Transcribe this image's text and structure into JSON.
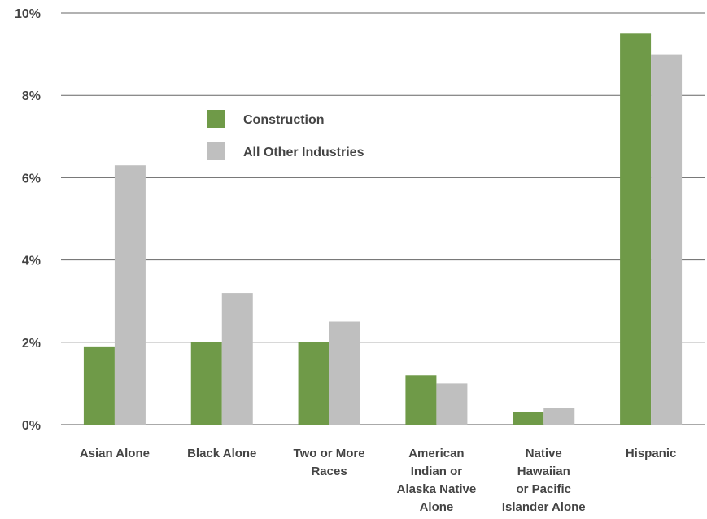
{
  "chart_data": {
    "type": "bar",
    "title": "",
    "xlabel": "",
    "ylabel": "",
    "ylim": [
      0,
      10
    ],
    "yticks": [
      "0%",
      "2%",
      "4%",
      "6%",
      "8%",
      "10%"
    ],
    "ytick_values": [
      0,
      2,
      4,
      6,
      8,
      10
    ],
    "grid": "horizontal",
    "legend_position": "top-left",
    "categories": [
      [
        "Asian Alone"
      ],
      [
        "Black Alone"
      ],
      [
        "Two or More",
        "Races"
      ],
      [
        "American",
        "Indian or",
        "Alaska Native",
        "Alone"
      ],
      [
        "Native",
        "Hawaiian",
        "or Pacific",
        "Islander Alone"
      ],
      [
        "Hispanic"
      ]
    ],
    "series": [
      {
        "name": "Construction",
        "color": "#6f9a48",
        "values": [
          1.9,
          2.0,
          2.0,
          1.2,
          0.3,
          9.5
        ]
      },
      {
        "name": "All Other Industries",
        "color": "#bfbfbf",
        "values": [
          6.3,
          3.2,
          2.5,
          1.0,
          0.4,
          9.0
        ]
      }
    ]
  }
}
